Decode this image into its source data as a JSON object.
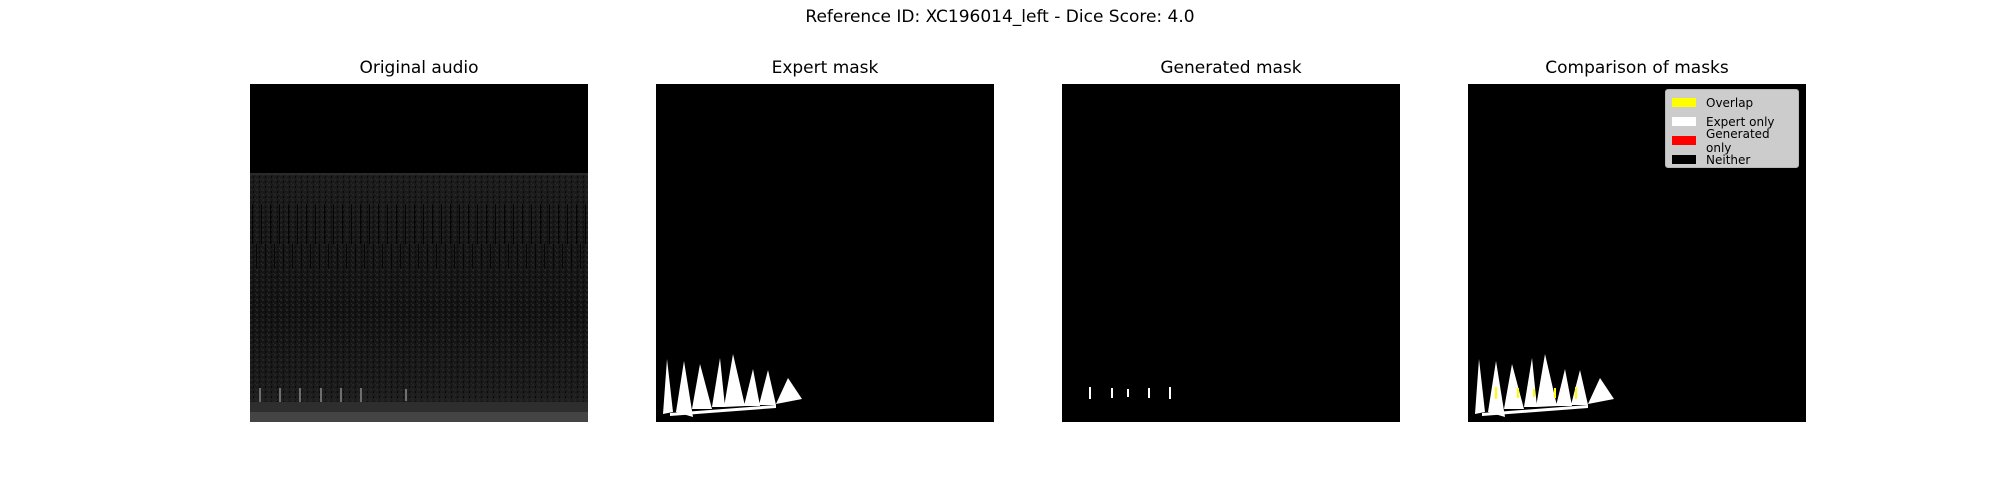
{
  "figure": {
    "title": "Reference ID: XC196014_left - Dice Score: 4.0"
  },
  "panels": [
    {
      "title": "Original audio"
    },
    {
      "title": "Expert mask"
    },
    {
      "title": "Generated mask"
    },
    {
      "title": "Comparison of masks"
    }
  ],
  "legend": {
    "entries": [
      {
        "label": "Overlap",
        "color": "#ffff00"
      },
      {
        "label": "Expert only",
        "color": "#ffffff"
      },
      {
        "label": "Generated only",
        "color": "#ff0000"
      },
      {
        "label": "Neither",
        "color": "#000000"
      }
    ]
  },
  "colors": {
    "background": "#000000",
    "mask": "#ffffff",
    "overlap": "#ffff00",
    "generated_only": "#ff0000"
  }
}
